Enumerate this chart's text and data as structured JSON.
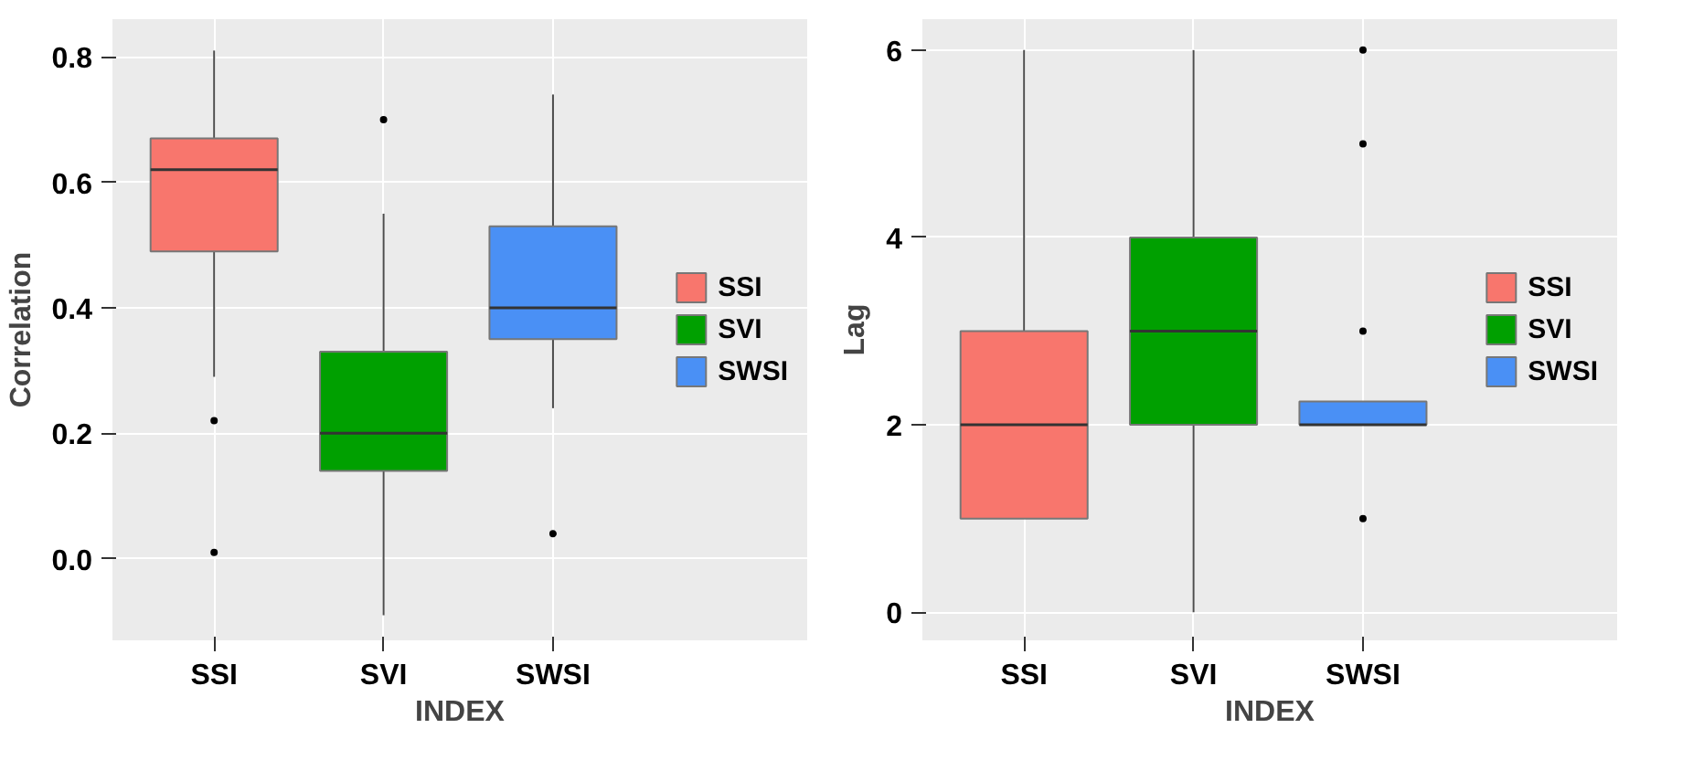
{
  "chart_data": [
    {
      "type": "box",
      "categories": [
        "SSI",
        "SVI",
        "SWSI"
      ],
      "xlabel": "INDEX",
      "ylabel": "Correlation",
      "series": [
        {
          "name": "SSI",
          "color": "#f8766d",
          "boxes": [
            {
              "low": 0.29,
              "q1": 0.49,
              "median": 0.62,
              "q3": 0.67,
              "high": 0.81,
              "outliers": [
                0.22,
                0.01
              ]
            },
            null,
            null
          ]
        },
        {
          "name": "SVI",
          "color": "#00a000",
          "boxes": [
            null,
            {
              "low": -0.09,
              "q1": 0.14,
              "median": 0.2,
              "q3": 0.33,
              "high": 0.55,
              "outliers": [
                0.7
              ]
            },
            null
          ]
        },
        {
          "name": "SWSI",
          "color": "#4a90f5",
          "boxes": [
            null,
            null,
            {
              "low": 0.24,
              "q1": 0.35,
              "median": 0.4,
              "q3": 0.53,
              "high": 0.74,
              "outliers": [
                0.04
              ]
            }
          ]
        }
      ],
      "ylim": [
        -0.13,
        0.86
      ],
      "yticks": [
        {
          "value": 0,
          "label": "0.0"
        },
        0.2,
        0.4,
        0.6,
        0.8
      ],
      "grid": true,
      "legend": "right"
    },
    {
      "type": "box",
      "categories": [
        "SSI",
        "SVI",
        "SWSI"
      ],
      "xlabel": "INDEX",
      "ylabel": "Lag",
      "series": [
        {
          "name": "SSI",
          "color": "#f8766d",
          "boxes": [
            {
              "low": 1,
              "q1": 1,
              "median": 2,
              "q3": 3,
              "high": 6
            },
            null,
            null
          ]
        },
        {
          "name": "SVI",
          "color": "#00a000",
          "boxes": [
            null,
            {
              "low": 0,
              "q1": 2,
              "median": 3,
              "q3": 4,
              "high": 6
            },
            null
          ]
        },
        {
          "name": "SWSI",
          "color": "#4a90f5",
          "boxes": [
            null,
            null,
            {
              "low": 2,
              "q1": 2,
              "median": 2,
              "q3": 2.25,
              "high": 2.25,
              "outliers": [
                6,
                5,
                3,
                1
              ]
            }
          ]
        }
      ],
      "ylim": [
        -0.3,
        6.33
      ],
      "yticks": [
        0,
        2,
        4,
        6
      ],
      "grid": true,
      "legend": "right"
    }
  ]
}
